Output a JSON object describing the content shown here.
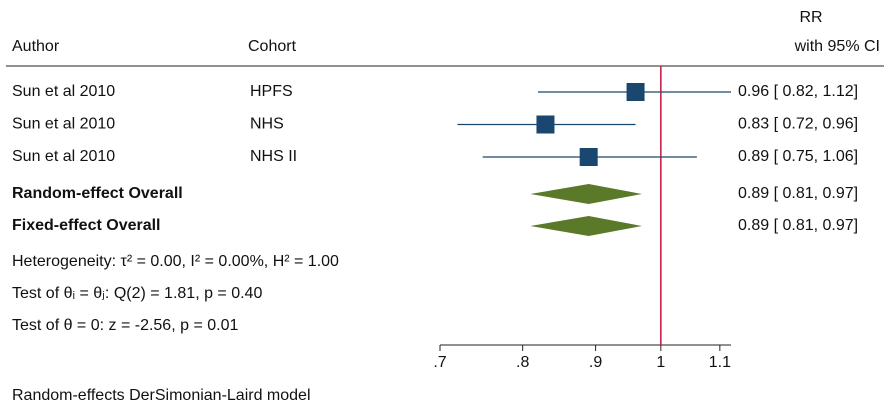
{
  "chart_data": {
    "type": "forest",
    "headers": {
      "author": "Author",
      "cohort": "Cohort",
      "effect": [
        "RR",
        "with 95% CI"
      ]
    },
    "studies": [
      {
        "author": "Sun et al 2010",
        "cohort": "HPFS",
        "value": 0.96,
        "lower": 0.82,
        "upper": 1.12,
        "value_label": "0.96 [ 0.82,  1.12]"
      },
      {
        "author": "Sun et al 2010",
        "cohort": "NHS",
        "value": 0.83,
        "lower": 0.72,
        "upper": 0.96,
        "value_label": "0.83 [ 0.72,  0.96]"
      },
      {
        "author": "Sun et al 2010",
        "cohort": "NHS II",
        "value": 0.89,
        "lower": 0.75,
        "upper": 1.06,
        "value_label": "0.89 [ 0.75,  1.06]"
      }
    ],
    "overall": [
      {
        "name": "Random-effect Overall",
        "value": 0.89,
        "lower": 0.81,
        "upper": 0.97,
        "value_label": "0.89 [ 0.81,  0.97]"
      },
      {
        "name": "Fixed-effect Overall",
        "value": 0.89,
        "lower": 0.81,
        "upper": 0.97,
        "value_label": "0.89 [ 0.81,  0.97]"
      }
    ],
    "notes": [
      "Heterogeneity: τ² = 0.00, I² = 0.00%, H² = 1.00",
      "Test of θᵢ = θⱼ: Q(2) = 1.81, p = 0.40",
      "Test of θ = 0: z = -2.56, p = 0.01"
    ],
    "footnote": "Random-effects DerSimonian-Laird model",
    "xscale": "log",
    "xlim": [
      0.7,
      1.12
    ],
    "xticks": [
      {
        "value": 0.7,
        "label": ".7"
      },
      {
        "value": 0.8,
        "label": ".8"
      },
      {
        "value": 0.9,
        "label": ".9"
      },
      1,
      1.1
    ],
    "ref_line": 1,
    "study_color": "#1a476f",
    "overall_color": "#5a7a2a",
    "ref_color": "#c8143c"
  }
}
